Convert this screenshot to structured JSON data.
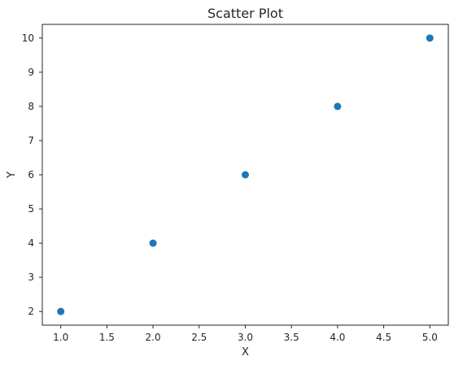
{
  "chart_data": {
    "type": "scatter",
    "title": "Scatter Plot",
    "xlabel": "X",
    "ylabel": "Y",
    "x": [
      1.0,
      2.0,
      3.0,
      4.0,
      5.0
    ],
    "y": [
      2,
      4,
      6,
      8,
      10
    ],
    "xlim": [
      0.8,
      5.2
    ],
    "ylim": [
      1.6,
      10.4
    ],
    "xticks": [
      "1.0",
      "1.5",
      "2.0",
      "2.5",
      "3.0",
      "3.5",
      "4.0",
      "4.5",
      "5.0"
    ],
    "yticks": [
      "2",
      "3",
      "4",
      "5",
      "6",
      "7",
      "8",
      "9",
      "10"
    ],
    "grid": false,
    "marker_color": "#1f77b4"
  }
}
